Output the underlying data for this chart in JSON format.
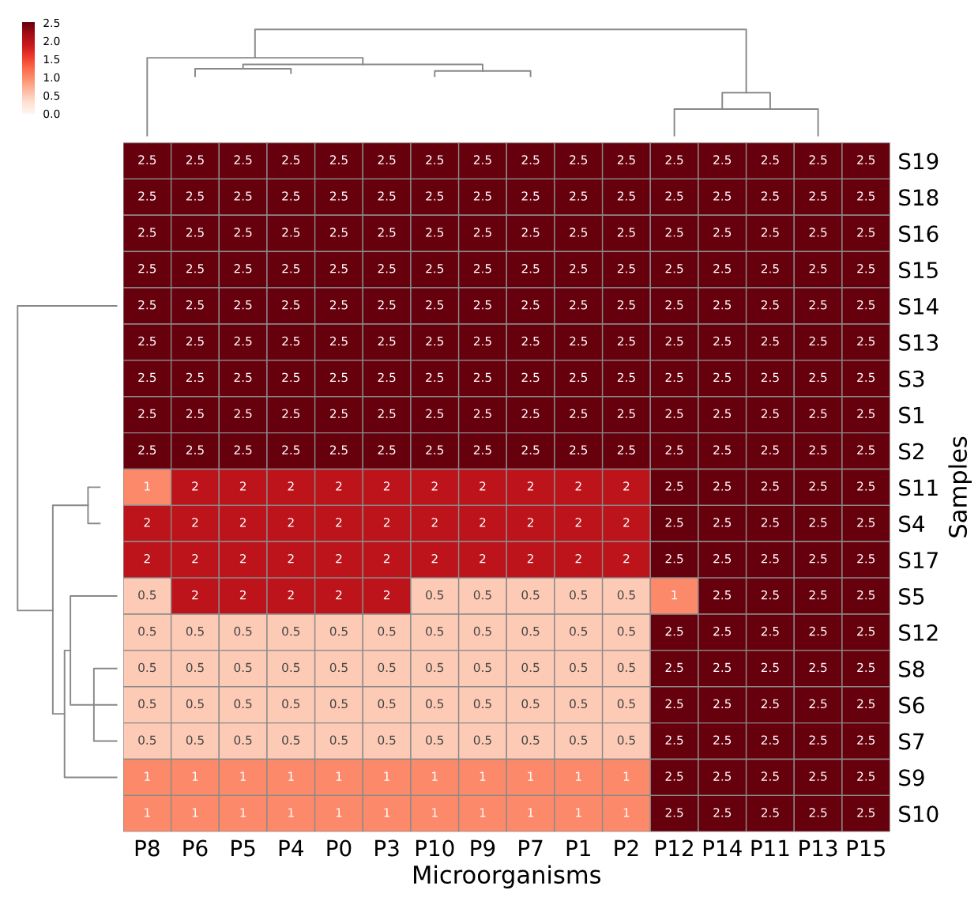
{
  "chart_data": {
    "type": "heatmap",
    "xlabel": "Microorganisms",
    "ylabel": "Samples",
    "categories": [
      "P8",
      "P6",
      "P5",
      "P4",
      "P0",
      "P3",
      "P10",
      "P9",
      "P7",
      "P1",
      "P2",
      "P12",
      "P14",
      "P11",
      "P13",
      "P15"
    ],
    "y_categories": [
      "S19",
      "S18",
      "S16",
      "S15",
      "S14",
      "S13",
      "S3",
      "S1",
      "S2",
      "S11",
      "S4",
      "S17",
      "S5",
      "S12",
      "S8",
      "S6",
      "S7",
      "S9",
      "S10"
    ],
    "cells": [
      [
        2.5,
        2.5,
        2.5,
        2.5,
        2.5,
        2.5,
        2.5,
        2.5,
        2.5,
        2.5,
        2.5,
        2.5,
        2.5,
        2.5,
        2.5,
        2.5
      ],
      [
        2.5,
        2.5,
        2.5,
        2.5,
        2.5,
        2.5,
        2.5,
        2.5,
        2.5,
        2.5,
        2.5,
        2.5,
        2.5,
        2.5,
        2.5,
        2.5
      ],
      [
        2.5,
        2.5,
        2.5,
        2.5,
        2.5,
        2.5,
        2.5,
        2.5,
        2.5,
        2.5,
        2.5,
        2.5,
        2.5,
        2.5,
        2.5,
        2.5
      ],
      [
        2.5,
        2.5,
        2.5,
        2.5,
        2.5,
        2.5,
        2.5,
        2.5,
        2.5,
        2.5,
        2.5,
        2.5,
        2.5,
        2.5,
        2.5,
        2.5
      ],
      [
        2.5,
        2.5,
        2.5,
        2.5,
        2.5,
        2.5,
        2.5,
        2.5,
        2.5,
        2.5,
        2.5,
        2.5,
        2.5,
        2.5,
        2.5,
        2.5
      ],
      [
        2.5,
        2.5,
        2.5,
        2.5,
        2.5,
        2.5,
        2.5,
        2.5,
        2.5,
        2.5,
        2.5,
        2.5,
        2.5,
        2.5,
        2.5,
        2.5
      ],
      [
        2.5,
        2.5,
        2.5,
        2.5,
        2.5,
        2.5,
        2.5,
        2.5,
        2.5,
        2.5,
        2.5,
        2.5,
        2.5,
        2.5,
        2.5,
        2.5
      ],
      [
        2.5,
        2.5,
        2.5,
        2.5,
        2.5,
        2.5,
        2.5,
        2.5,
        2.5,
        2.5,
        2.5,
        2.5,
        2.5,
        2.5,
        2.5,
        2.5
      ],
      [
        2.5,
        2.5,
        2.5,
        2.5,
        2.5,
        2.5,
        2.5,
        2.5,
        2.5,
        2.5,
        2.5,
        2.5,
        2.5,
        2.5,
        2.5,
        2.5
      ],
      [
        1,
        2,
        2,
        2,
        2,
        2,
        2,
        2,
        2,
        2,
        2,
        2.5,
        2.5,
        2.5,
        2.5,
        2.5
      ],
      [
        2,
        2,
        2,
        2,
        2,
        2,
        2,
        2,
        2,
        2,
        2,
        2.5,
        2.5,
        2.5,
        2.5,
        2.5
      ],
      [
        2,
        2,
        2,
        2,
        2,
        2,
        2,
        2,
        2,
        2,
        2,
        2.5,
        2.5,
        2.5,
        2.5,
        2.5
      ],
      [
        0.5,
        2,
        2,
        2,
        2,
        2,
        0.5,
        0.5,
        0.5,
        0.5,
        0.5,
        1,
        2.5,
        2.5,
        2.5,
        2.5
      ],
      [
        0.5,
        0.5,
        0.5,
        0.5,
        0.5,
        0.5,
        0.5,
        0.5,
        0.5,
        0.5,
        0.5,
        2.5,
        2.5,
        2.5,
        2.5,
        2.5
      ],
      [
        0.5,
        0.5,
        0.5,
        0.5,
        0.5,
        0.5,
        0.5,
        0.5,
        0.5,
        0.5,
        0.5,
        2.5,
        2.5,
        2.5,
        2.5,
        2.5
      ],
      [
        0.5,
        0.5,
        0.5,
        0.5,
        0.5,
        0.5,
        0.5,
        0.5,
        0.5,
        0.5,
        0.5,
        2.5,
        2.5,
        2.5,
        2.5,
        2.5
      ],
      [
        0.5,
        0.5,
        0.5,
        0.5,
        0.5,
        0.5,
        0.5,
        0.5,
        0.5,
        0.5,
        0.5,
        2.5,
        2.5,
        2.5,
        2.5,
        2.5
      ],
      [
        1,
        1,
        1,
        1,
        1,
        1,
        1,
        1,
        1,
        1,
        1,
        2.5,
        2.5,
        2.5,
        2.5,
        2.5
      ],
      [
        1,
        1,
        1,
        1,
        1,
        1,
        1,
        1,
        1,
        1,
        1,
        2.5,
        2.5,
        2.5,
        2.5,
        2.5
      ]
    ],
    "data_labels": true,
    "clim": [
      0,
      2.5
    ],
    "cticks": [
      {
        "value": 0,
        "label": "0.0"
      },
      {
        "value": 0.5,
        "label": "0.5"
      },
      {
        "value": 1,
        "label": "1.0"
      },
      {
        "value": 1.5,
        "label": "1.5"
      },
      {
        "value": 2,
        "label": "2.0"
      },
      {
        "value": 2.5,
        "label": "2.5"
      }
    ]
  }
}
